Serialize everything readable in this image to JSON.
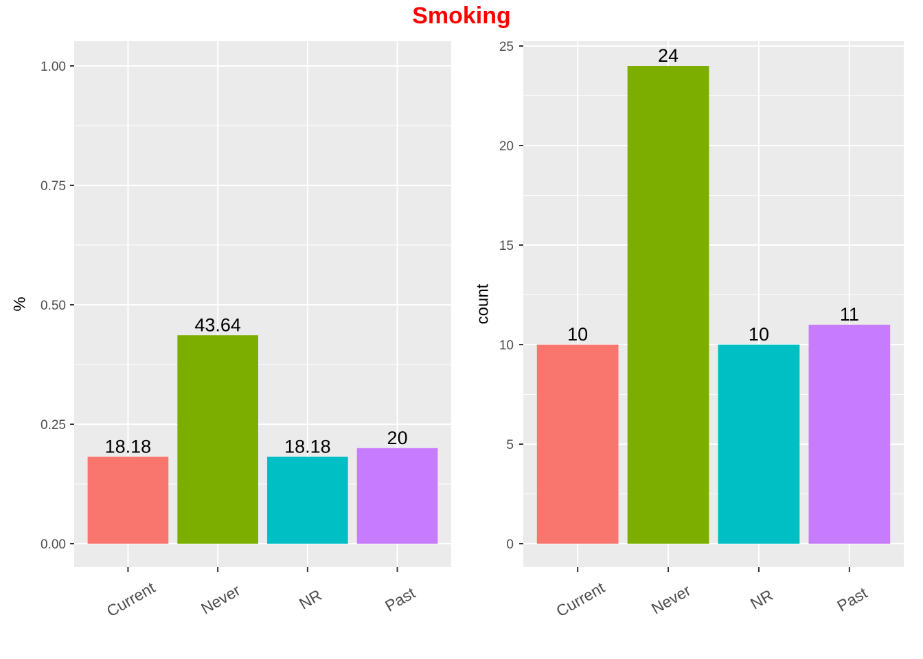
{
  "title": "Smoking",
  "colors": {
    "title": "#ff0000",
    "panel_background": "#ebebeb",
    "grid": "#ffffff",
    "categories": [
      "#f8766d",
      "#7cae00",
      "#00bfc4",
      "#c77cff"
    ]
  },
  "chart_data": [
    {
      "type": "bar",
      "categories": [
        "Current",
        "Never",
        "NR",
        "Past"
      ],
      "values": [
        0.1818,
        0.4364,
        0.1818,
        0.2
      ],
      "data_labels": [
        "18.18",
        "43.64",
        "18.18",
        "20"
      ],
      "ylabel": "%",
      "xlabel": "",
      "ylim": [
        0,
        1.0
      ],
      "yticks": [
        0,
        0.25,
        0.5,
        0.75,
        1.0
      ],
      "ytick_labels": [
        "0.00",
        "0.25",
        "0.50",
        "0.75",
        "1.00"
      ],
      "grid": true,
      "legend": "none"
    },
    {
      "type": "bar",
      "categories": [
        "Current",
        "Never",
        "NR",
        "Past"
      ],
      "values": [
        10,
        24,
        10,
        11
      ],
      "data_labels": [
        "10",
        "24",
        "10",
        "11"
      ],
      "ylabel": "count",
      "xlabel": "",
      "ylim": [
        0,
        25
      ],
      "yticks": [
        0,
        5,
        10,
        15,
        20,
        25
      ],
      "ytick_labels": [
        "0",
        "5",
        "10",
        "15",
        "20",
        "25"
      ],
      "grid": true,
      "legend": "none"
    }
  ]
}
